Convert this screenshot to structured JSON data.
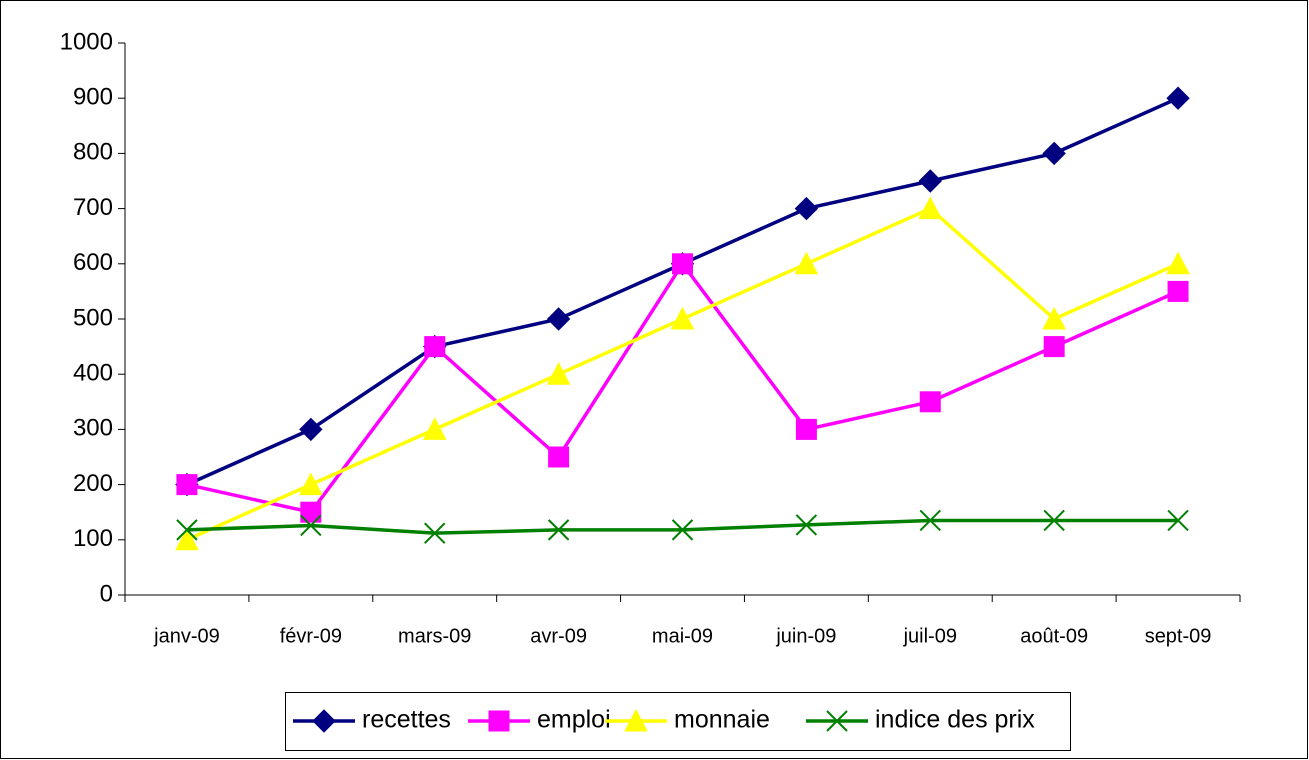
{
  "chart_data": {
    "type": "line",
    "categories": [
      "janv-09",
      "févr-09",
      "mars-09",
      "avr-09",
      "mai-09",
      "juin-09",
      "juil-09",
      "août-09",
      "sept-09"
    ],
    "series": [
      {
        "name": "recettes",
        "color": "#000080",
        "marker": "diamond",
        "values": [
          200,
          300,
          450,
          500,
          600,
          700,
          750,
          800,
          900
        ]
      },
      {
        "name": "emploi",
        "color": "#ff00ff",
        "marker": "square",
        "values": [
          200,
          150,
          450,
          250,
          600,
          300,
          350,
          450,
          550
        ]
      },
      {
        "name": "monnaie",
        "color": "#ffff00",
        "marker": "triangle",
        "values": [
          100,
          200,
          300,
          400,
          500,
          600,
          700,
          500,
          600
        ]
      },
      {
        "name": "indice des prix",
        "color": "#008000",
        "marker": "x",
        "values": [
          118,
          126,
          112,
          118,
          118,
          127,
          135,
          135,
          135
        ]
      }
    ],
    "ylim": [
      0,
      1000
    ],
    "yticks": [
      0,
      100,
      200,
      300,
      400,
      500,
      600,
      700,
      800,
      900,
      1000
    ],
    "grid": false,
    "legend": "bottom"
  }
}
